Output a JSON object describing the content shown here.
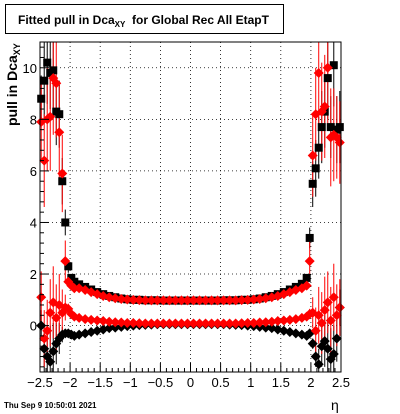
{
  "title": {
    "main": "Fitted pull in Dca",
    "sub": "XY",
    "rest": "for Global Rec All EtapT"
  },
  "ylabel": {
    "main": "pull in Dca",
    "sub": "XY"
  },
  "xlabel": "η",
  "footer": "Thu Sep  9 10:50:01 2021",
  "colors": {
    "black_series": "#000000",
    "red_series": "#ff0000",
    "grid": "#000000"
  },
  "chart_data": {
    "type": "scatter",
    "xlim": [
      -2.5,
      2.5
    ],
    "ylim": [
      -1.8,
      11.0
    ],
    "xticks": [
      {
        "v": -2.5,
        "label": "−2.5"
      },
      {
        "v": -2,
        "label": "−2"
      },
      {
        "v": -1.5,
        "label": "−1.5"
      },
      {
        "v": -1,
        "label": "−1"
      },
      {
        "v": -0.5,
        "label": "−0.5"
      },
      {
        "v": 0,
        "label": "0"
      },
      {
        "v": 0.5,
        "label": "0.5"
      },
      {
        "v": 1,
        "label": "1"
      },
      {
        "v": 1.5,
        "label": "1.5"
      },
      {
        "v": 2,
        "label": "2"
      },
      {
        "v": 2.5,
        "label": "2.5"
      }
    ],
    "yticks": [
      {
        "v": 0,
        "label": "0"
      },
      {
        "v": 2,
        "label": "2"
      },
      {
        "v": 4,
        "label": "4"
      },
      {
        "v": 6,
        "label": "6"
      },
      {
        "v": 8,
        "label": "8"
      },
      {
        "v": 10,
        "label": "10"
      }
    ],
    "grid": true,
    "series": [
      {
        "marker": "square",
        "color": "#000000",
        "role": "sigma",
        "x": [
          -2.48,
          -2.43,
          -2.38,
          -2.33,
          -2.28,
          -2.23,
          -2.18,
          -2.13,
          -2.08,
          -2.03,
          -1.98,
          -1.93,
          -1.85,
          -1.75,
          -1.65,
          -1.55,
          -1.45,
          -1.35,
          -1.25,
          -1.15,
          -1.05,
          -0.95,
          -0.85,
          -0.75,
          -0.65,
          -0.55,
          -0.45,
          -0.35,
          -0.25,
          -0.15,
          -0.05,
          0.05,
          0.15,
          0.25,
          0.35,
          0.45,
          0.55,
          0.65,
          0.75,
          0.85,
          0.95,
          1.05,
          1.15,
          1.25,
          1.35,
          1.45,
          1.55,
          1.65,
          1.75,
          1.85,
          1.93,
          1.98,
          2.03,
          2.08,
          2.13,
          2.18,
          2.23,
          2.28,
          2.33,
          2.38,
          2.43,
          2.48
        ],
        "y": [
          8.8,
          9.5,
          10.2,
          9.8,
          9.9,
          8.3,
          8.2,
          5.6,
          4.0,
          2.3,
          1.85,
          1.7,
          1.6,
          1.5,
          1.4,
          1.3,
          1.22,
          1.15,
          1.1,
          1.05,
          1.02,
          1.0,
          1.0,
          0.98,
          0.98,
          0.98,
          0.97,
          0.97,
          0.97,
          0.97,
          0.97,
          0.97,
          0.97,
          0.97,
          0.97,
          0.97,
          0.98,
          0.98,
          0.98,
          1.0,
          1.0,
          1.02,
          1.05,
          1.1,
          1.15,
          1.22,
          1.3,
          1.4,
          1.5,
          1.62,
          1.85,
          3.4,
          5.5,
          6.1,
          6.9,
          7.7,
          8.3,
          9.6,
          7.7,
          10.1,
          7.6,
          7.7
        ],
        "err": [
          0.9,
          1.5,
          1.6,
          1.4,
          1.5,
          1.3,
          1.3,
          0.9,
          0.5,
          0.25,
          0.1,
          0.08,
          0,
          0,
          0,
          0,
          0,
          0,
          0,
          0,
          0,
          0,
          0,
          0,
          0,
          0,
          0,
          0,
          0,
          0,
          0,
          0,
          0,
          0,
          0,
          0,
          0,
          0,
          0,
          0,
          0,
          0,
          0,
          0,
          0,
          0,
          0,
          0,
          0,
          0,
          0.1,
          0.4,
          0.9,
          1.1,
          1.2,
          1.4,
          1.4,
          1.6,
          1.2,
          1.6,
          1.3,
          1.4
        ]
      },
      {
        "marker": "diamond",
        "color": "#000000",
        "role": "mean",
        "x": [
          -2.48,
          -2.43,
          -2.38,
          -2.33,
          -2.28,
          -2.23,
          -2.18,
          -2.13,
          -2.08,
          -2.03,
          -1.98,
          -1.93,
          -1.85,
          -1.75,
          -1.65,
          -1.55,
          -1.45,
          -1.35,
          -1.25,
          -1.15,
          -1.05,
          -0.95,
          -0.85,
          -0.75,
          -0.65,
          -0.55,
          -0.45,
          -0.35,
          -0.25,
          -0.15,
          -0.05,
          0.05,
          0.15,
          0.25,
          0.35,
          0.45,
          0.55,
          0.65,
          0.75,
          0.85,
          0.95,
          1.05,
          1.15,
          1.25,
          1.35,
          1.45,
          1.55,
          1.65,
          1.75,
          1.85,
          1.93,
          1.98,
          2.03,
          2.08,
          2.13,
          2.18,
          2.23,
          2.28,
          2.33,
          2.38,
          2.43,
          2.48
        ],
        "y": [
          0.0,
          -0.9,
          -1.2,
          -1.4,
          -1.0,
          -0.7,
          -0.5,
          -0.35,
          -0.3,
          -0.3,
          -0.35,
          -0.4,
          -0.35,
          -0.3,
          -0.25,
          -0.2,
          -0.15,
          -0.1,
          -0.08,
          -0.05,
          -0.02,
          0.0,
          0.02,
          0.03,
          0.04,
          0.05,
          0.05,
          0.05,
          0.05,
          0.05,
          0.05,
          0.05,
          0.05,
          0.05,
          0.05,
          0.05,
          0.05,
          0.04,
          0.03,
          0.02,
          0.0,
          -0.02,
          -0.05,
          -0.08,
          -0.1,
          -0.15,
          -0.2,
          -0.25,
          -0.3,
          -0.35,
          -0.4,
          -0.3,
          -0.7,
          -1.2,
          -1.5,
          -0.8,
          -0.6,
          -0.9,
          -1.3,
          -1.1,
          -0.5,
          0.7
        ],
        "err": [
          0.6,
          0.9,
          1.2,
          1.4,
          1.1,
          0.8,
          0.6,
          0.3,
          0.15,
          0.1,
          0.05,
          0.05,
          0,
          0,
          0,
          0,
          0,
          0,
          0,
          0,
          0,
          0,
          0,
          0,
          0,
          0,
          0,
          0,
          0,
          0,
          0,
          0,
          0,
          0,
          0,
          0,
          0,
          0,
          0,
          0,
          0,
          0,
          0,
          0,
          0,
          0,
          0,
          0,
          0,
          0,
          0.05,
          0.05,
          0.2,
          0.4,
          0.6,
          0.8,
          1.0,
          1.1,
          1.2,
          1.1,
          0.9,
          0.7
        ]
      },
      {
        "marker": "diamond",
        "color": "#ff0000",
        "role": "sigma",
        "x": [
          -2.48,
          -2.43,
          -2.38,
          -2.33,
          -2.28,
          -2.23,
          -2.18,
          -2.13,
          -2.08,
          -2.03,
          -1.98,
          -1.93,
          -1.85,
          -1.75,
          -1.65,
          -1.55,
          -1.45,
          -1.35,
          -1.25,
          -1.15,
          -1.05,
          -0.95,
          -0.85,
          -0.75,
          -0.65,
          -0.55,
          -0.45,
          -0.35,
          -0.25,
          -0.15,
          -0.05,
          0.05,
          0.15,
          0.25,
          0.35,
          0.45,
          0.55,
          0.65,
          0.75,
          0.85,
          0.95,
          1.05,
          1.15,
          1.25,
          1.35,
          1.45,
          1.55,
          1.65,
          1.75,
          1.85,
          1.93,
          1.98,
          2.03,
          2.08,
          2.13,
          2.18,
          2.23,
          2.28,
          2.33,
          2.38,
          2.43,
          2.48
        ],
        "y": [
          7.9,
          6.4,
          8.0,
          8.1,
          9.6,
          9.4,
          7.5,
          5.9,
          2.5,
          1.7,
          1.55,
          1.45,
          1.45,
          1.38,
          1.3,
          1.22,
          1.15,
          1.1,
          1.06,
          1.03,
          1.01,
          1.0,
          0.99,
          0.98,
          0.98,
          0.98,
          0.98,
          0.98,
          0.98,
          0.98,
          0.98,
          0.98,
          0.98,
          0.98,
          0.98,
          0.98,
          0.98,
          0.98,
          0.98,
          0.99,
          1.0,
          1.01,
          1.03,
          1.06,
          1.1,
          1.15,
          1.22,
          1.3,
          1.38,
          1.45,
          1.55,
          2.5,
          6.6,
          8.2,
          9.8,
          8.3,
          8.5,
          10.0,
          7.3,
          7.4,
          7.3,
          7.1
        ],
        "err": [
          1.5,
          1.8,
          2.0,
          2.1,
          2.2,
          2.1,
          1.8,
          1.5,
          0.8,
          0.2,
          0.1,
          0.08,
          0,
          0,
          0,
          0,
          0,
          0,
          0,
          0,
          0,
          0,
          0,
          0,
          0,
          0,
          0,
          0,
          0,
          0,
          0,
          0,
          0,
          0,
          0,
          0,
          0,
          0,
          0,
          0,
          0,
          0,
          0,
          0,
          0,
          0,
          0,
          0,
          0,
          0,
          0.1,
          0.8,
          1.6,
          1.8,
          2.0,
          1.9,
          2.0,
          2.2,
          1.9,
          1.8,
          1.6,
          1.6
        ]
      },
      {
        "marker": "diamond",
        "color": "#ff0000",
        "role": "mean",
        "x": [
          -2.48,
          -2.43,
          -2.38,
          -2.33,
          -2.28,
          -2.23,
          -2.18,
          -2.13,
          -2.08,
          -2.03,
          -1.98,
          -1.93,
          -1.85,
          -1.75,
          -1.65,
          -1.55,
          -1.45,
          -1.35,
          -1.25,
          -1.15,
          -1.05,
          -0.95,
          -0.85,
          -0.75,
          -0.65,
          -0.55,
          -0.45,
          -0.35,
          -0.25,
          -0.15,
          -0.05,
          0.05,
          0.15,
          0.25,
          0.35,
          0.45,
          0.55,
          0.65,
          0.75,
          0.85,
          0.95,
          1.05,
          1.15,
          1.25,
          1.35,
          1.45,
          1.55,
          1.65,
          1.75,
          1.85,
          1.93,
          1.98,
          2.03,
          2.08,
          2.13,
          2.18,
          2.23,
          2.28,
          2.33,
          2.38,
          2.43,
          2.48
        ],
        "y": [
          1.1,
          -0.5,
          -0.2,
          0.5,
          0.9,
          0.3,
          0.8,
          0.5,
          0.7,
          0.65,
          0.45,
          0.35,
          0.3,
          0.25,
          0.22,
          0.2,
          0.18,
          0.15,
          0.13,
          0.12,
          0.1,
          0.1,
          0.09,
          0.08,
          0.08,
          0.08,
          0.08,
          0.08,
          0.08,
          0.08,
          0.08,
          0.08,
          0.08,
          0.08,
          0.08,
          0.08,
          0.08,
          0.08,
          0.08,
          0.09,
          0.1,
          0.1,
          0.12,
          0.13,
          0.15,
          0.18,
          0.2,
          0.22,
          0.25,
          0.3,
          0.35,
          0.45,
          0.5,
          -0.2,
          0.4,
          0.1,
          0.6,
          0.9,
          0.2,
          1.1,
          0.4,
          0.7
        ],
        "err": [
          1.0,
          1.1,
          1.2,
          1.3,
          1.4,
          1.3,
          1.2,
          0.9,
          0.5,
          0.2,
          0.08,
          0.05,
          0,
          0,
          0,
          0,
          0,
          0,
          0,
          0,
          0,
          0,
          0,
          0,
          0,
          0,
          0,
          0,
          0,
          0,
          0,
          0,
          0,
          0,
          0,
          0,
          0,
          0,
          0,
          0,
          0,
          0,
          0,
          0,
          0,
          0,
          0,
          0,
          0,
          0,
          0.05,
          0.2,
          0.6,
          0.9,
          1.1,
          1.2,
          1.3,
          1.2,
          1.3,
          1.3,
          1.2,
          1.1
        ]
      }
    ]
  }
}
